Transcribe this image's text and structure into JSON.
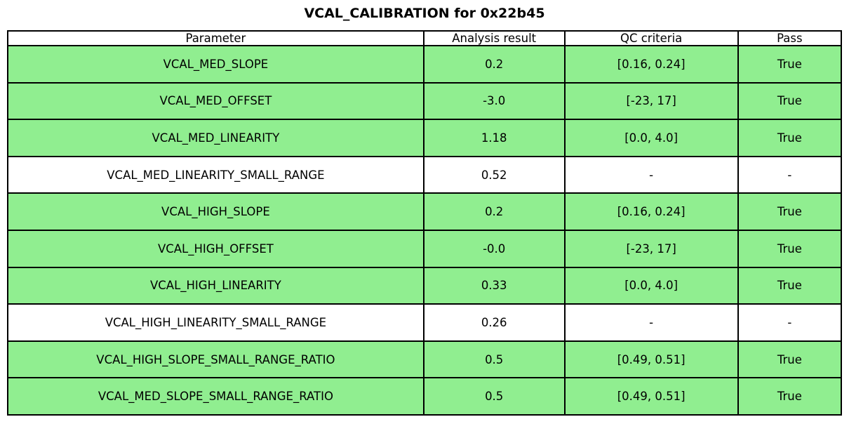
{
  "title": "VCAL_CALIBRATION for 0x22b45",
  "chart_data": {
    "type": "table",
    "title": "VCAL_CALIBRATION for 0x22b45",
    "columns": [
      "Parameter",
      "Analysis result",
      "QC criteria",
      "Pass"
    ],
    "rows": [
      {
        "parameter": "VCAL_MED_SLOPE",
        "result": "0.2",
        "criteria": "[0.16, 0.24]",
        "pass": "True",
        "highlight": true
      },
      {
        "parameter": "VCAL_MED_OFFSET",
        "result": "-3.0",
        "criteria": "[-23, 17]",
        "pass": "True",
        "highlight": true
      },
      {
        "parameter": "VCAL_MED_LINEARITY",
        "result": "1.18",
        "criteria": "[0.0, 4.0]",
        "pass": "True",
        "highlight": true
      },
      {
        "parameter": "VCAL_MED_LINEARITY_SMALL_RANGE",
        "result": "0.52",
        "criteria": "-",
        "pass": "-",
        "highlight": false
      },
      {
        "parameter": "VCAL_HIGH_SLOPE",
        "result": "0.2",
        "criteria": "[0.16, 0.24]",
        "pass": "True",
        "highlight": true
      },
      {
        "parameter": "VCAL_HIGH_OFFSET",
        "result": "-0.0",
        "criteria": "[-23, 17]",
        "pass": "True",
        "highlight": true
      },
      {
        "parameter": "VCAL_HIGH_LINEARITY",
        "result": "0.33",
        "criteria": "[0.0, 4.0]",
        "pass": "True",
        "highlight": true
      },
      {
        "parameter": "VCAL_HIGH_LINEARITY_SMALL_RANGE",
        "result": "0.26",
        "criteria": "-",
        "pass": "-",
        "highlight": false
      },
      {
        "parameter": "VCAL_HIGH_SLOPE_SMALL_RANGE_RATIO",
        "result": "0.5",
        "criteria": "[0.49, 0.51]",
        "pass": "True",
        "highlight": true
      },
      {
        "parameter": "VCAL_MED_SLOPE_SMALL_RANGE_RATIO",
        "result": "0.5",
        "criteria": "[0.49, 0.51]",
        "pass": "True",
        "highlight": true
      }
    ],
    "colors": {
      "pass_row_bg": "#90ee90",
      "neutral_row_bg": "#ffffff",
      "border": "#000000",
      "text": "#000000"
    }
  }
}
